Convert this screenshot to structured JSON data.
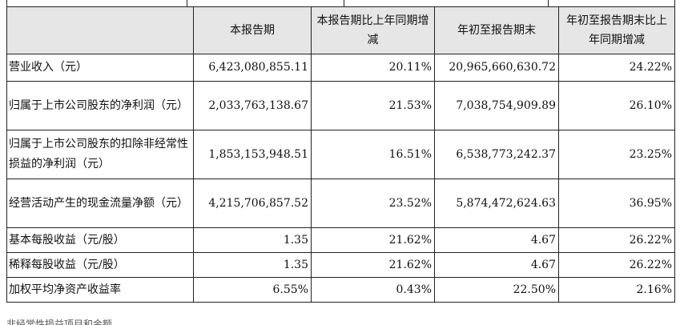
{
  "table": {
    "headers": [
      "",
      "本报告期",
      "本报告期比上年同期增减",
      "年初至报告期末",
      "年初至报告期末比上年同期增减"
    ],
    "rows": [
      {
        "label": "营业收入（元）",
        "values": [
          "6,423,080,855.11",
          "20.11%",
          "20,965,660,630.72",
          "24.22%"
        ]
      },
      {
        "label": "归属于上市公司股东的净利润（元）",
        "values": [
          "2,033,763,138.67",
          "21.53%",
          "7,038,754,909.89",
          "26.10%"
        ]
      },
      {
        "label": "归属于上市公司股东的扣除非经常性损益的净利润（元）",
        "values": [
          "1,853,153,948.51",
          "16.51%",
          "6,538,773,242.37",
          "23.25%"
        ]
      },
      {
        "label": "经营活动产生的现金流量净额（元）",
        "values": [
          "4,215,706,857.52",
          "23.52%",
          "5,874,472,624.63",
          "36.95%"
        ]
      },
      {
        "label": "基本每股收益（元/股）",
        "values": [
          "1.35",
          "21.62%",
          "4.67",
          "26.22%"
        ]
      },
      {
        "label": "稀释每股收益（元/股）",
        "values": [
          "1.35",
          "21.62%",
          "4.67",
          "26.22%"
        ]
      },
      {
        "label": "加权平均净资产收益率",
        "values": [
          "6.55%",
          "0.43%",
          "22.50%",
          "2.16%"
        ]
      }
    ]
  },
  "footer_text": "非经常性损益项目和金额"
}
